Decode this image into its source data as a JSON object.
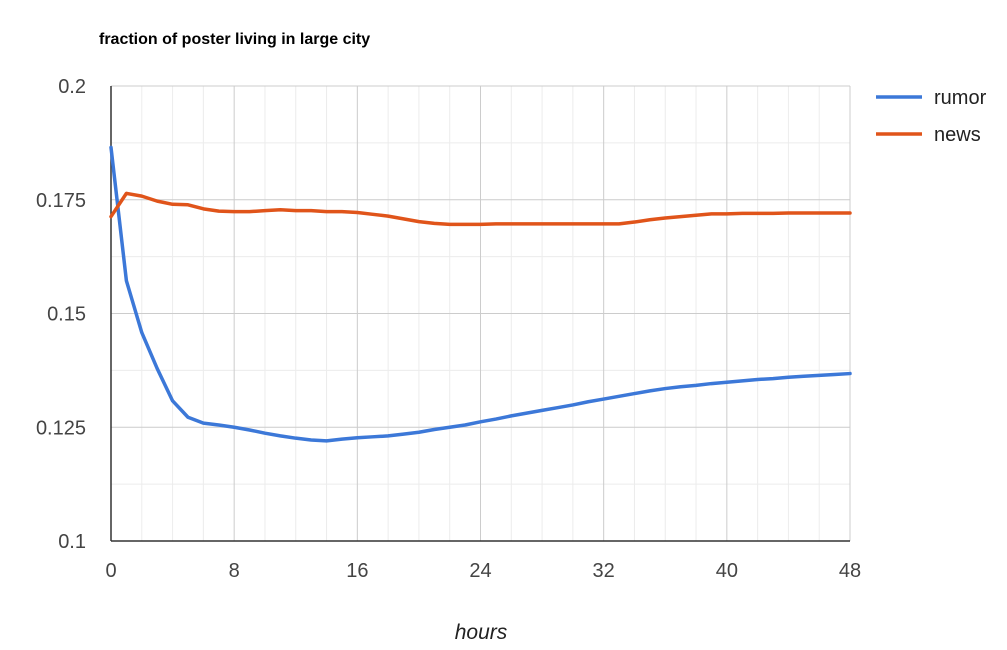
{
  "chart_data": {
    "type": "line",
    "title": "fraction of poster living in large city",
    "xlabel": "hours",
    "ylabel": "",
    "xlim": [
      0,
      48
    ],
    "ylim": [
      0.1,
      0.2
    ],
    "x_ticks": [
      "0",
      "8",
      "16",
      "24",
      "32",
      "40",
      "48"
    ],
    "y_ticks": [
      "0.1",
      "0.125",
      "0.15",
      "0.175",
      "0.2"
    ],
    "grid": true,
    "legend_position": "right",
    "series": [
      {
        "name": "rumor",
        "color": "#3c78d8",
        "x": [
          0,
          1,
          2,
          3,
          4,
          5,
          6,
          7,
          8,
          9,
          10,
          11,
          12,
          13,
          14,
          15,
          16,
          17,
          18,
          19,
          20,
          21,
          22,
          23,
          24,
          25,
          26,
          27,
          28,
          29,
          30,
          31,
          32,
          33,
          34,
          35,
          36,
          37,
          38,
          39,
          40,
          41,
          42,
          43,
          44,
          45,
          46,
          47,
          48
        ],
        "values": [
          0.1865,
          0.1572,
          0.1458,
          0.1379,
          0.1308,
          0.1272,
          0.1259,
          0.1255,
          0.125,
          0.1244,
          0.1237,
          0.1231,
          0.1226,
          0.1222,
          0.122,
          0.1224,
          0.1227,
          0.1229,
          0.1231,
          0.1235,
          0.1239,
          0.1245,
          0.125,
          0.1255,
          0.1262,
          0.1268,
          0.1275,
          0.1281,
          0.1287,
          0.1293,
          0.1299,
          0.1306,
          0.1312,
          0.1318,
          0.1324,
          0.133,
          0.1335,
          0.1339,
          0.1342,
          0.1346,
          0.1349,
          0.1352,
          0.1355,
          0.1357,
          0.136,
          0.1362,
          0.1364,
          0.1366,
          0.1368
        ]
      },
      {
        "name": "news",
        "color": "#e0541a",
        "x": [
          0,
          1,
          2,
          3,
          4,
          5,
          6,
          7,
          8,
          9,
          10,
          11,
          12,
          13,
          14,
          15,
          16,
          17,
          18,
          19,
          20,
          21,
          22,
          23,
          24,
          25,
          26,
          27,
          28,
          29,
          30,
          31,
          32,
          33,
          34,
          35,
          36,
          37,
          38,
          39,
          40,
          41,
          42,
          43,
          44,
          45,
          46,
          47,
          48
        ],
        "values": [
          0.1713,
          0.1764,
          0.1758,
          0.1747,
          0.174,
          0.1739,
          0.173,
          0.1725,
          0.1724,
          0.1724,
          0.1726,
          0.1728,
          0.1726,
          0.1726,
          0.1724,
          0.1724,
          0.1722,
          0.1718,
          0.1714,
          0.1708,
          0.1702,
          0.1698,
          0.1696,
          0.1696,
          0.1696,
          0.1697,
          0.1697,
          0.1697,
          0.1697,
          0.1697,
          0.1697,
          0.1697,
          0.1697,
          0.1697,
          0.1701,
          0.1706,
          0.171,
          0.1713,
          0.1716,
          0.1719,
          0.1719,
          0.172,
          0.172,
          0.172,
          0.1721,
          0.1721,
          0.1721,
          0.1721,
          0.1721
        ]
      }
    ]
  }
}
